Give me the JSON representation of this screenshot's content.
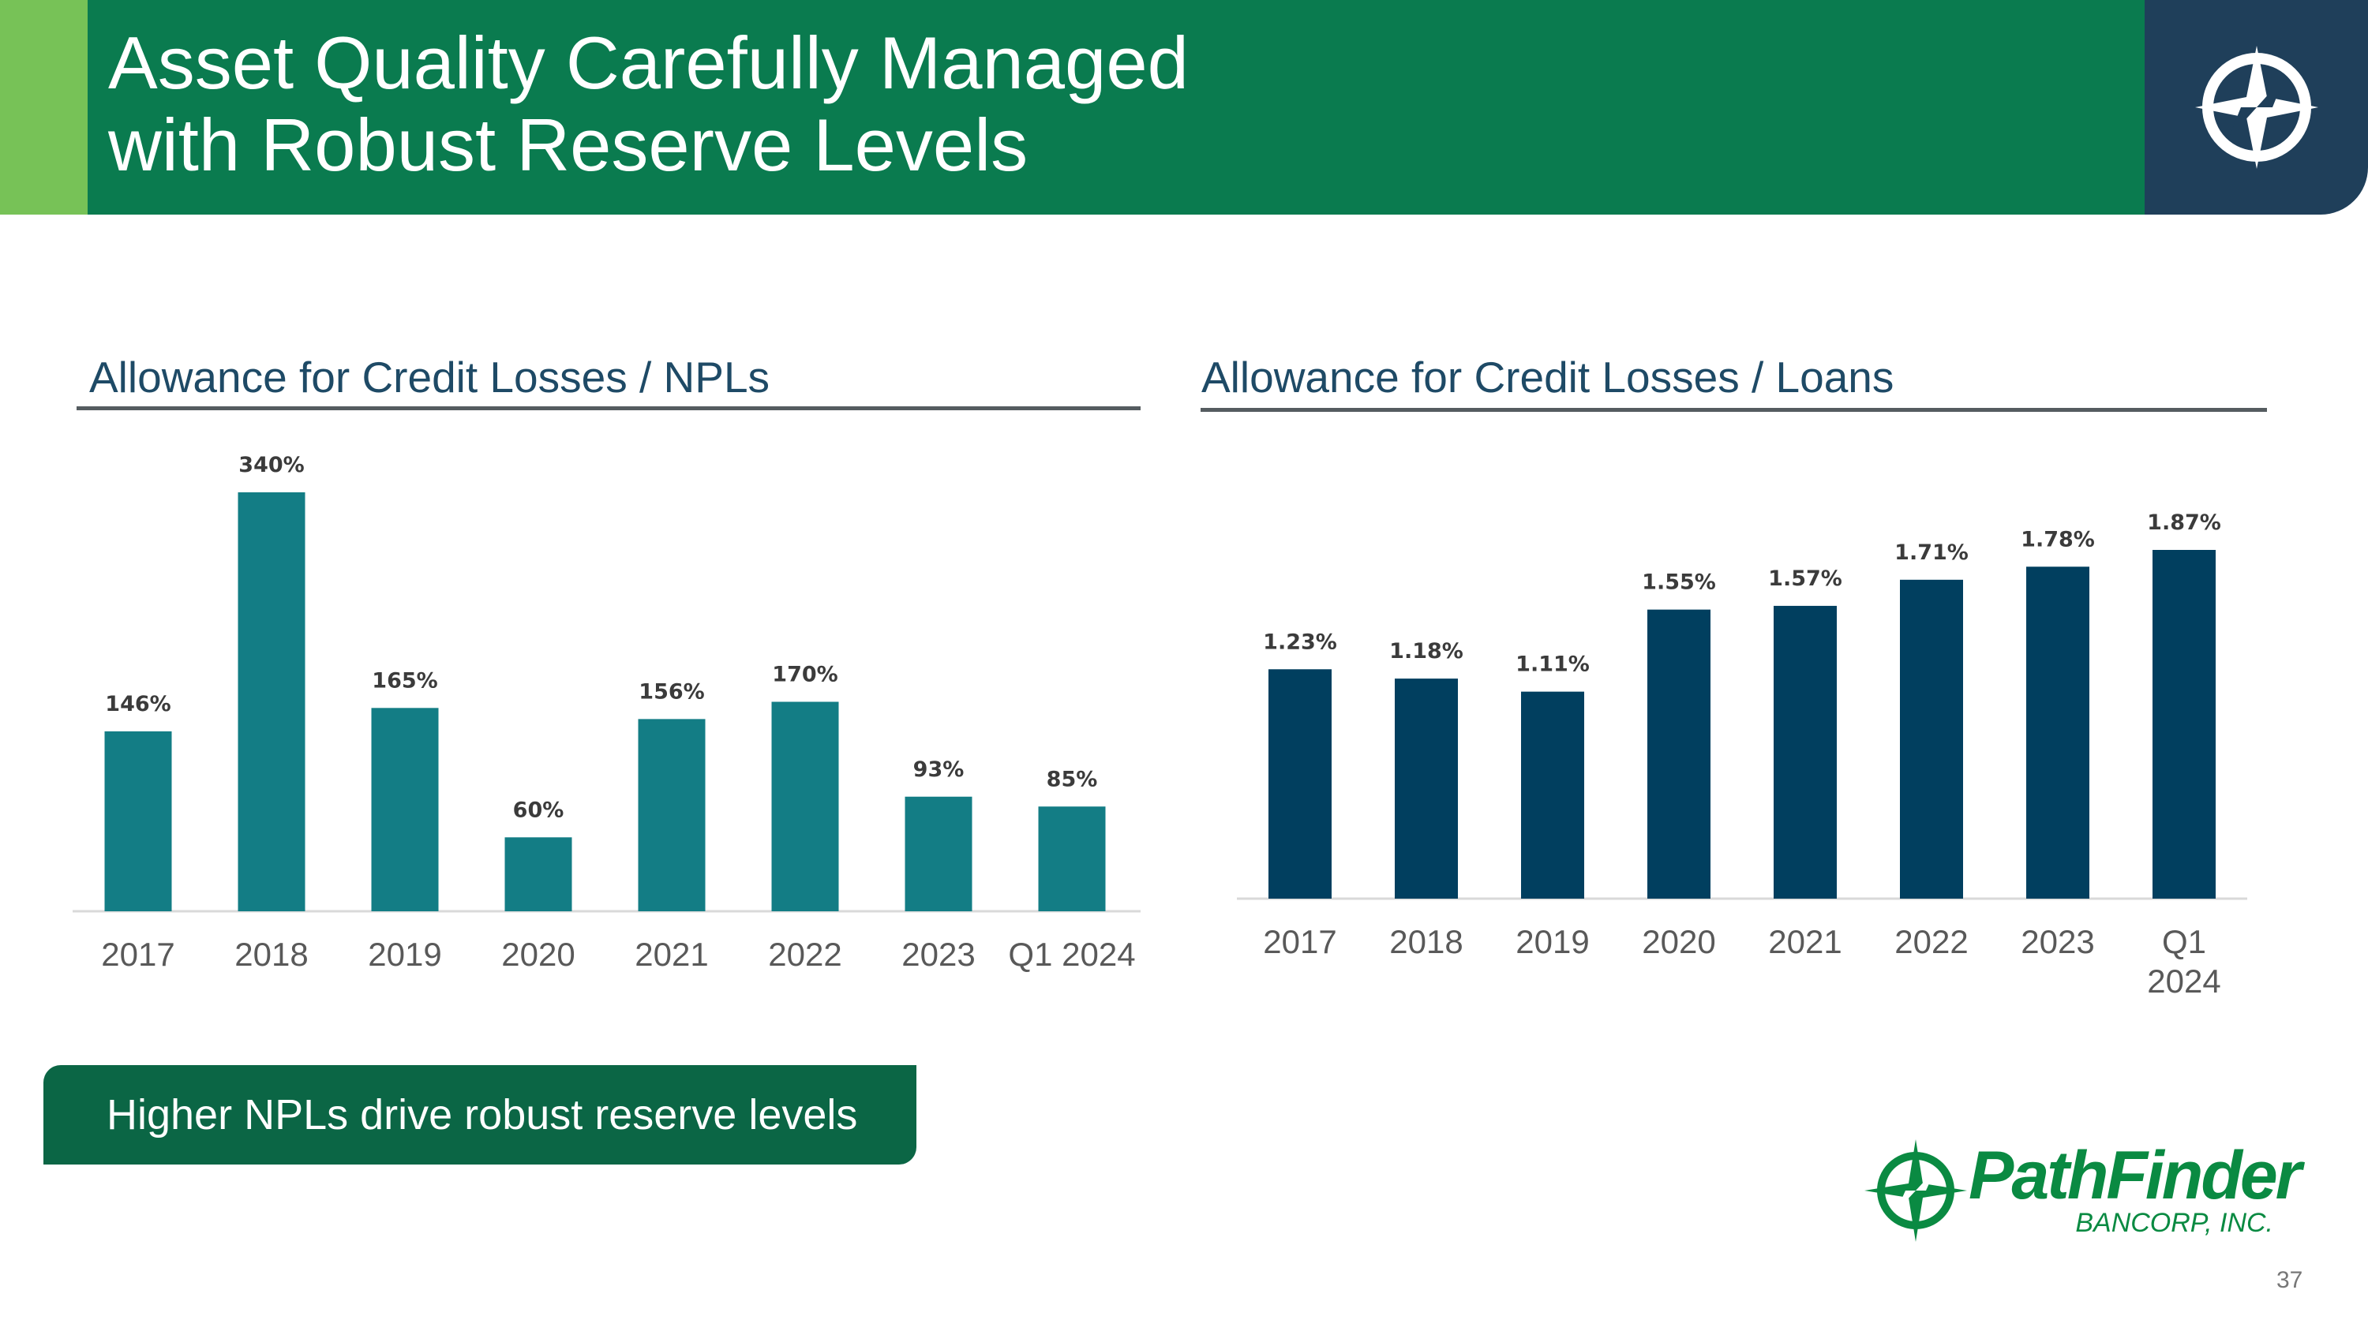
{
  "header": {
    "title_line1": "Asset Quality Carefully Managed",
    "title_line2": "with Robust Reserve Levels"
  },
  "colors": {
    "accent_green": "#77c257",
    "header_green": "#0a7b4f",
    "logo_navy": "#1f3f5a",
    "npl_bar": "#137d85",
    "loans_bar": "#013f5f",
    "callout": "#0b6645",
    "brand_green": "#0a8a42"
  },
  "icons": {
    "header_logo": "compass-star-icon",
    "brand_logo": "compass-star-icon"
  },
  "chart_data": [
    {
      "type": "bar",
      "title": "Allowance for Credit Losses / NPLs",
      "categories": [
        "2017",
        "2018",
        "2019",
        "2020",
        "2021",
        "2022",
        "2023",
        "Q1 2024"
      ],
      "values": [
        146,
        340,
        165,
        60,
        156,
        170,
        93,
        85
      ],
      "value_labels": [
        "146%",
        "340%",
        "165%",
        "60%",
        "156%",
        "170%",
        "93%",
        "85%"
      ],
      "unit": "%",
      "ylim": [
        0,
        340
      ],
      "xlabel": "",
      "ylabel": "",
      "grid": false
    },
    {
      "type": "bar",
      "title": "Allowance for Credit Losses / Loans",
      "categories": [
        "2017",
        "2018",
        "2019",
        "2020",
        "2021",
        "2022",
        "2023",
        "Q1 2024"
      ],
      "category_lines": [
        [
          "2017"
        ],
        [
          "2018"
        ],
        [
          "2019"
        ],
        [
          "2020"
        ],
        [
          "2021"
        ],
        [
          "2022"
        ],
        [
          "2023"
        ],
        [
          "Q1",
          "2024"
        ]
      ],
      "values": [
        1.23,
        1.18,
        1.11,
        1.55,
        1.57,
        1.71,
        1.78,
        1.87
      ],
      "value_labels": [
        "1.23%",
        "1.18%",
        "1.11%",
        "1.55%",
        "1.57%",
        "1.71%",
        "1.78%",
        "1.87%"
      ],
      "unit": "%",
      "ylim": [
        0,
        1.87
      ],
      "xlabel": "",
      "ylabel": "",
      "grid": false
    }
  ],
  "callout": {
    "text": "Higher NPLs drive robust reserve levels"
  },
  "brand": {
    "name": "PathFinder",
    "sub": "BANCORP, INC."
  },
  "page_number": "37"
}
